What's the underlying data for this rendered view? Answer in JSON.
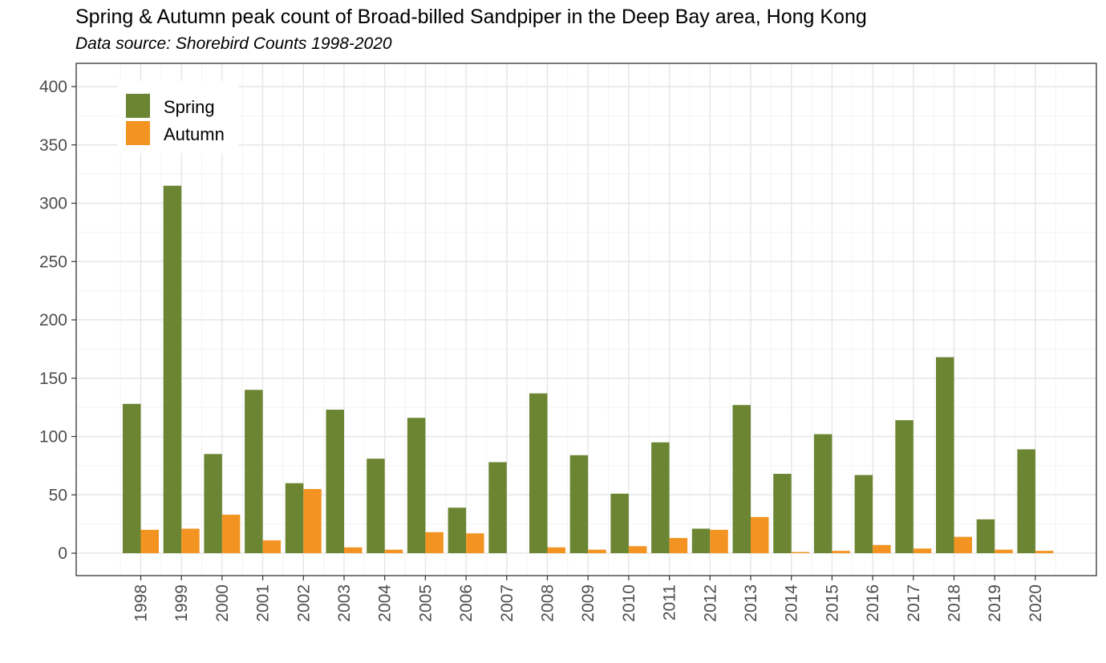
{
  "chart_data": {
    "type": "bar",
    "title": "Spring & Autumn peak count of Broad-billed Sandpiper in the Deep Bay area, Hong Kong",
    "subtitle": "Data source: Shorebird Counts 1998-2020",
    "xlabel": "",
    "ylabel": "",
    "categories": [
      "1998",
      "1999",
      "2000",
      "2001",
      "2002",
      "2003",
      "2004",
      "2005",
      "2006",
      "2007",
      "2008",
      "2009",
      "2010",
      "2011",
      "2012",
      "2013",
      "2014",
      "2015",
      "2016",
      "2017",
      "2018",
      "2019",
      "2020"
    ],
    "series": [
      {
        "name": "Spring",
        "color": "#6b8532",
        "values": [
          128,
          315,
          85,
          140,
          60,
          123,
          81,
          116,
          39,
          78,
          137,
          84,
          51,
          95,
          21,
          127,
          68,
          102,
          67,
          114,
          168,
          29,
          89
        ]
      },
      {
        "name": "Autumn",
        "color": "#f39422",
        "values": [
          20,
          21,
          33,
          11,
          55,
          5,
          3,
          18,
          17,
          0,
          5,
          3,
          6,
          13,
          20,
          31,
          1,
          2,
          7,
          4,
          14,
          3,
          2
        ]
      }
    ],
    "ylim": [
      -20,
      420
    ],
    "yticks": [
      0,
      50,
      100,
      150,
      200,
      250,
      300,
      350,
      400
    ],
    "grid": true,
    "legend_position": "top-left"
  }
}
